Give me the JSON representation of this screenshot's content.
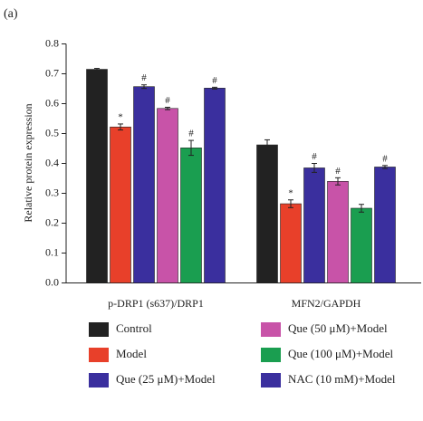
{
  "chart_data": {
    "type": "bar",
    "panel_label": "(a)",
    "y_label": "Relative protein expression",
    "categories": [
      "p-DRP1 (s637)/DRP1",
      "MFN2/GAPDH"
    ],
    "series": [
      {
        "name": "Control",
        "color": "#222222",
        "values": [
          0.715,
          0.462
        ],
        "errors": [
          0.003,
          0.017
        ],
        "annotations": [
          null,
          null
        ]
      },
      {
        "name": "Model",
        "color": "#e8402a",
        "values": [
          0.522,
          0.265
        ],
        "errors": [
          0.01,
          0.013
        ],
        "annotations": [
          "*",
          "*"
        ]
      },
      {
        "name": "Que (25 μM)+Model",
        "color": "#3a2f9e",
        "values": [
          0.657,
          0.385
        ],
        "errors": [
          0.006,
          0.015
        ],
        "annotations": [
          "#",
          "#"
        ]
      },
      {
        "name": "Que (50 μM)+Model",
        "color": "#c853a8",
        "values": [
          0.584,
          0.34
        ],
        "errors": [
          0.004,
          0.012
        ],
        "annotations": [
          "#",
          "#"
        ]
      },
      {
        "name": "Que (100 μM)+Model",
        "color": "#1a9e50",
        "values": [
          0.452,
          0.25
        ],
        "errors": [
          0.025,
          0.013
        ],
        "annotations": [
          "#",
          null
        ]
      },
      {
        "name": "NAC (10 mM)+Model",
        "color": "#3a2f9e",
        "values": [
          0.652,
          0.388
        ],
        "errors": [
          0.003,
          0.005
        ],
        "annotations": [
          "#",
          "#"
        ]
      }
    ],
    "ylim": [
      0,
      0.8
    ],
    "yticks": [
      {
        "value": 0,
        "label": "0.0"
      },
      0.1,
      0.2,
      0.3,
      0.4,
      0.5,
      0.6,
      0.7,
      0.8
    ]
  }
}
